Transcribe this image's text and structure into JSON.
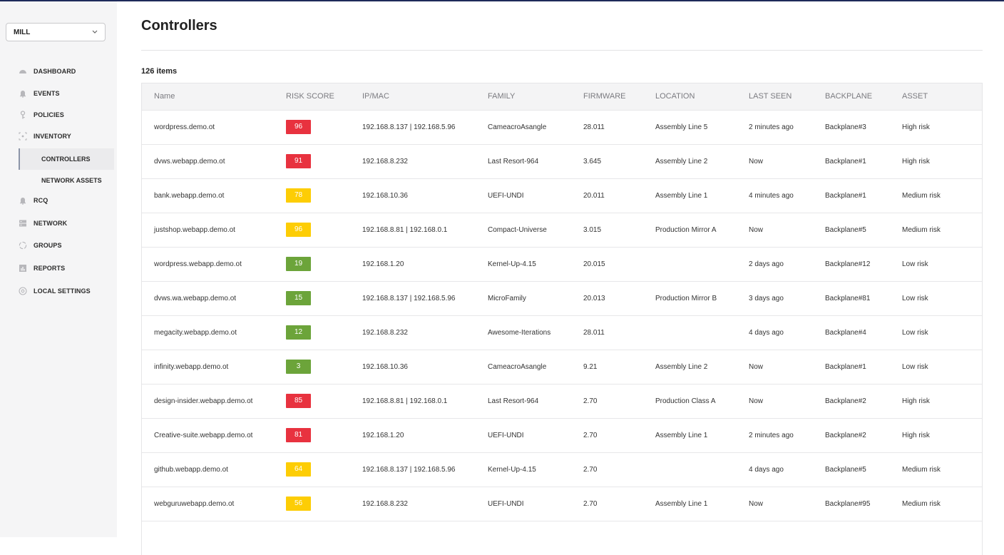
{
  "sidebar": {
    "site_selector": {
      "value": "MILL"
    },
    "items": [
      {
        "label": "DASHBOARD",
        "icon": "dashboard-gauge-icon"
      },
      {
        "label": "EVENTS",
        "icon": "bell-icon"
      },
      {
        "label": "POLICIES",
        "icon": "key-icon"
      },
      {
        "label": "INVENTORY",
        "icon": "inventory-icon"
      },
      {
        "label": "RCQ",
        "icon": "bell-icon"
      },
      {
        "label": "NETWORK",
        "icon": "network-icon"
      },
      {
        "label": "GROUPS",
        "icon": "groups-icon"
      },
      {
        "label": "REPORTS",
        "icon": "reports-icon"
      },
      {
        "label": "LOCAL SETTINGS",
        "icon": "settings-icon"
      }
    ],
    "inventory_sub": [
      {
        "label": "CONTROLLERS",
        "active": true
      },
      {
        "label": "NETWORK ASSETS",
        "active": false
      }
    ]
  },
  "page": {
    "title": "Controllers",
    "count": "126 items"
  },
  "table": {
    "columns": [
      "Name",
      "RISK SCORE",
      "IP/MAC",
      "FAMILY",
      "FIRMWARE",
      "LOCATION",
      "LAST SEEN",
      "BACKPLANE",
      "ASSET"
    ],
    "risk_colors": {
      "high": "#e8323f",
      "medium": "#fdcd05",
      "low": "#6ca43a"
    },
    "rows": [
      {
        "name": "wordpress.demo.ot",
        "risk": "96",
        "level": "high",
        "ip": "192.168.8.137 | 192.168.5.96",
        "family": "CameacroAsangle",
        "firmware": "28.011",
        "location": "Assembly Line 5",
        "last_seen": "2 minutes ago",
        "backplane": "Backplane#3",
        "asset": "High risk"
      },
      {
        "name": "dvws.webapp.demo.ot",
        "risk": "91",
        "level": "high",
        "ip": "192.168.8.232",
        "family": "Last Resort-964",
        "firmware": "3.645",
        "location": "Assembly Line 2",
        "last_seen": "Now",
        "backplane": "Backplane#1",
        "asset": "High risk"
      },
      {
        "name": "bank.webapp.demo.ot",
        "risk": "78",
        "level": "medium",
        "ip": "192.168.10.36",
        "family": "UEFI-UNDI",
        "firmware": "20.011",
        "location": "Assembly Line 1",
        "last_seen": "4 minutes ago",
        "backplane": "Backplane#1",
        "asset": "Medium risk"
      },
      {
        "name": "justshop.webapp.demo.ot",
        "risk": "96",
        "level": "medium",
        "ip": "192.168.8.81 | 192.168.0.1",
        "family": "Compact-Universe",
        "firmware": "3.015",
        "location": "Production Mirror A",
        "last_seen": "Now",
        "backplane": "Backplane#5",
        "asset": "Medium risk"
      },
      {
        "name": "wordpress.webapp.demo.ot",
        "risk": "19",
        "level": "low",
        "ip": "192.168.1.20",
        "family": "Kernel-Up-4.15",
        "firmware": "20.015",
        "location": "",
        "last_seen": "2 days ago",
        "backplane": "Backplane#12",
        "asset": "Low risk"
      },
      {
        "name": "dvws.wa.webapp.demo.ot",
        "risk": "15",
        "level": "low",
        "ip": "192.168.8.137 | 192.168.5.96",
        "family": "MicroFamily",
        "firmware": "20.013",
        "location": "Production Mirror B",
        "last_seen": "3 days ago",
        "backplane": "Backplane#81",
        "asset": "Low risk"
      },
      {
        "name": "megacity.webapp.demo.ot",
        "risk": "12",
        "level": "low",
        "ip": "192.168.8.232",
        "family": "Awesome-Iterations",
        "firmware": "28.011",
        "location": "",
        "last_seen": "4 days ago",
        "backplane": "Backplane#4",
        "asset": "Low risk"
      },
      {
        "name": "infinity.webapp.demo.ot",
        "risk": "3",
        "level": "low",
        "ip": "192.168.10.36",
        "family": "CameacroAsangle",
        "firmware": "9.21",
        "location": "Assembly Line 2",
        "last_seen": "Now",
        "backplane": "Backplane#1",
        "asset": "Low risk"
      },
      {
        "name": "design-insider.webapp.demo.ot",
        "risk": "85",
        "level": "high",
        "ip": "192.168.8.81 | 192.168.0.1",
        "family": "Last Resort-964",
        "firmware": "2.70",
        "location": "Production Class A",
        "last_seen": "Now",
        "backplane": "Backplane#2",
        "asset": "High risk"
      },
      {
        "name": "Creative-suite.webapp.demo.ot",
        "risk": "81",
        "level": "high",
        "ip": "192.168.1.20",
        "family": "UEFI-UNDI",
        "firmware": "2.70",
        "location": "Assembly Line 1",
        "last_seen": "2 minutes ago",
        "backplane": "Backplane#2",
        "asset": "High risk"
      },
      {
        "name": "github.webapp.demo.ot",
        "risk": "64",
        "level": "medium",
        "ip": "192.168.8.137 | 192.168.5.96",
        "family": "Kernel-Up-4.15",
        "firmware": "2.70",
        "location": "",
        "last_seen": "4 days ago",
        "backplane": "Backplane#5",
        "asset": "Medium risk"
      },
      {
        "name": "webguruwebapp.demo.ot",
        "risk": "56",
        "level": "medium",
        "ip": "192.168.8.232",
        "family": "UEFI-UNDI",
        "firmware": "2.70",
        "location": "Assembly Line 1",
        "last_seen": "Now",
        "backplane": "Backplane#95",
        "asset": "Medium risk"
      },
      {
        "name": "",
        "risk": "",
        "level": "",
        "ip": "",
        "family": "",
        "firmware": "",
        "location": "",
        "last_seen": "",
        "backplane": "",
        "asset": ""
      }
    ]
  }
}
